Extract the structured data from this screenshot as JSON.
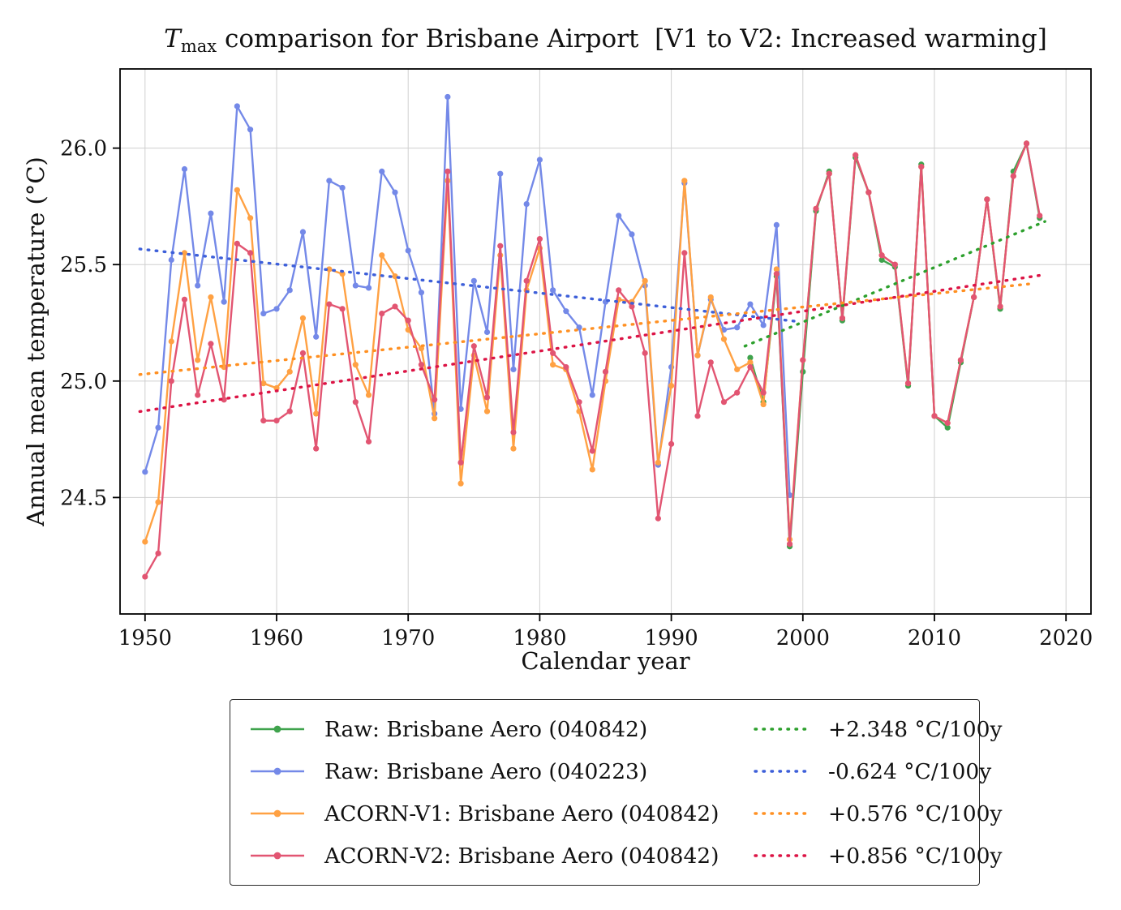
{
  "title": {
    "prefix": "T",
    "subscript": "max",
    "rest": " comparison for Brisbane Airport  [V1 to V2: Increased warming]"
  },
  "chart_data": {
    "type": "line",
    "title": "Tmax comparison for Brisbane Airport [V1 to V2: Increased warming]",
    "xlabel": "Calendar year",
    "ylabel": "Annual mean temperature (°C)",
    "xlim": [
      1948.1,
      2021.9
    ],
    "ylim": [
      24.0,
      26.34
    ],
    "xticks": [
      1950,
      1960,
      1970,
      1980,
      1990,
      2000,
      2010,
      2020
    ],
    "yticks": [
      24.5,
      25.0,
      25.5,
      26.0
    ],
    "ytick_labels": [
      "24.5",
      "25.0",
      "25.5",
      "26.0"
    ],
    "grid": true,
    "legend_position": "below",
    "series": [
      {
        "name": "Raw: Brisbane Aero (040842)",
        "color": "#3fa34d",
        "start_year": 1996,
        "values": [
          25.1,
          24.91,
          25.45,
          24.29,
          25.04,
          25.73,
          25.9,
          25.26,
          25.96,
          25.81,
          25.52,
          25.49,
          24.98,
          25.93,
          24.85,
          24.8,
          25.08,
          25.36,
          25.78,
          25.31,
          25.9,
          26.02,
          25.7
        ]
      },
      {
        "name": "Raw: Brisbane Aero (040223)",
        "color": "#7489e8",
        "start_year": 1950,
        "values": [
          24.61,
          24.8,
          25.52,
          25.91,
          25.41,
          25.72,
          25.34,
          26.18,
          26.08,
          25.29,
          25.31,
          25.39,
          25.64,
          25.19,
          25.86,
          25.83,
          25.41,
          25.4,
          25.9,
          25.81,
          25.56,
          25.38,
          24.86,
          26.22,
          24.88,
          25.43,
          25.21,
          25.89,
          25.05,
          25.76,
          25.95,
          25.39,
          25.3,
          25.23,
          24.94,
          25.34,
          25.71,
          25.63,
          25.41,
          24.64,
          25.06,
          25.85,
          25.11,
          25.35,
          25.22,
          25.23,
          25.33,
          25.24,
          25.67,
          24.51
        ]
      },
      {
        "name": "ACORN-V1: Brisbane Aero (040842)",
        "color": "#ffa143",
        "start_year": 1950,
        "values": [
          24.31,
          24.48,
          25.17,
          25.55,
          25.09,
          25.36,
          25.06,
          25.82,
          25.7,
          24.99,
          24.97,
          25.04,
          25.27,
          24.86,
          25.48,
          25.46,
          25.07,
          24.94,
          25.54,
          25.45,
          25.22,
          25.14,
          24.84,
          25.86,
          24.56,
          25.11,
          24.87,
          25.54,
          24.71,
          25.39,
          25.57,
          25.07,
          25.05,
          24.87,
          24.62,
          25.0,
          25.35,
          25.34,
          25.43,
          24.65,
          24.98,
          25.86,
          25.11,
          25.36,
          25.18,
          25.05,
          25.08,
          24.9,
          25.48,
          24.32,
          25.09,
          25.74,
          25.89,
          25.27,
          25.97,
          25.81,
          25.54,
          25.5,
          24.99,
          25.92,
          24.85,
          24.82,
          25.09,
          25.36,
          25.78,
          25.32,
          25.88,
          26.02
        ]
      },
      {
        "name": "ACORN-V2: Brisbane Aero (040842)",
        "color": "#e25572",
        "start_year": 1950,
        "values": [
          24.16,
          24.26,
          25.0,
          25.35,
          24.94,
          25.16,
          24.92,
          25.59,
          25.55,
          24.83,
          24.83,
          24.87,
          25.12,
          24.71,
          25.33,
          25.31,
          24.91,
          24.74,
          25.29,
          25.32,
          25.26,
          25.07,
          24.92,
          25.9,
          24.65,
          25.15,
          24.93,
          25.58,
          24.78,
          25.43,
          25.61,
          25.12,
          25.06,
          24.91,
          24.7,
          25.04,
          25.39,
          25.32,
          25.12,
          24.41,
          24.73,
          25.55,
          24.85,
          25.08,
          24.91,
          24.95,
          25.06,
          24.95,
          25.46,
          24.3,
          25.09,
          25.74,
          25.89,
          25.27,
          25.97,
          25.81,
          25.54,
          25.5,
          24.99,
          25.92,
          24.85,
          24.82,
          25.09,
          25.36,
          25.78,
          25.32,
          25.88,
          26.02,
          25.71
        ]
      }
    ],
    "trends": [
      {
        "label": "+2.348 °C/100y",
        "color": "#2da02d",
        "x1": 1995.6,
        "y1": 25.15,
        "x2": 2018.4,
        "y2": 25.685
      },
      {
        "label": "-0.624 °C/100y",
        "color": "#3d5fd9",
        "x1": 1949.6,
        "y1": 25.567,
        "x2": 1999.4,
        "y2": 25.257
      },
      {
        "label": "+0.576 °C/100y",
        "color": "#ff9022",
        "x1": 1949.6,
        "y1": 25.028,
        "x2": 2017.4,
        "y2": 25.418
      },
      {
        "label": "+0.856 °C/100y",
        "color": "#dc1445",
        "x1": 1949.6,
        "y1": 24.869,
        "x2": 2018.4,
        "y2": 25.457
      }
    ],
    "style": {
      "grid_color": "#cfcfcf",
      "spine_color": "#000000",
      "tick_label_size": 26,
      "marker_radius": 3.6,
      "line_width": 2.4
    }
  }
}
